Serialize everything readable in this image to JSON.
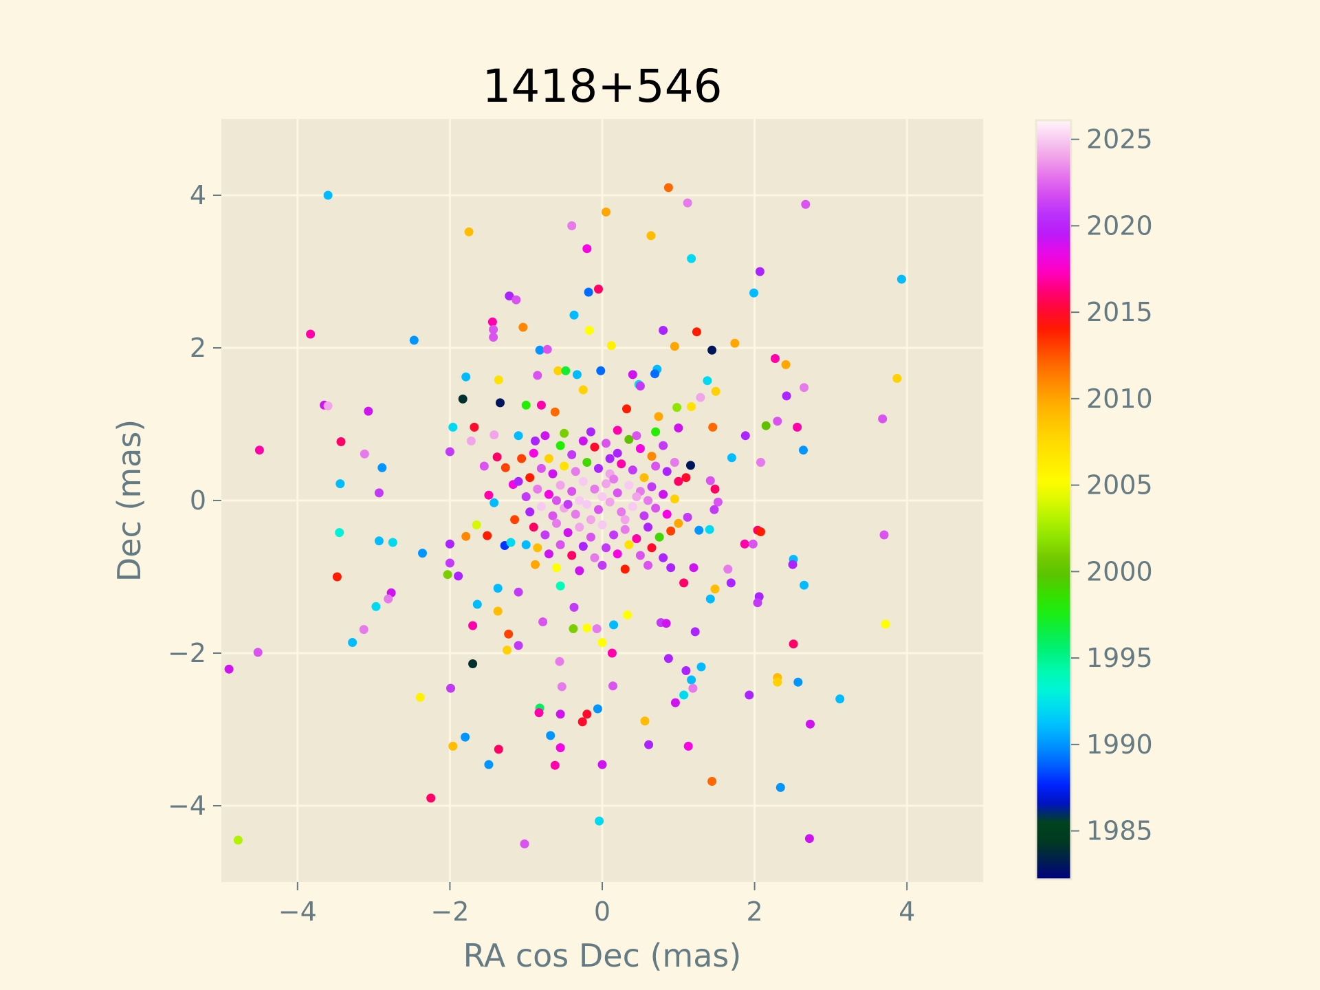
{
  "chart_data": {
    "type": "scatter",
    "title": "1418+546",
    "xlabel": "RA cos Dec (mas)",
    "ylabel": "Dec (mas)",
    "xlim": [
      -5,
      5
    ],
    "ylim": [
      -5,
      5
    ],
    "xticks": [
      -4,
      -2,
      0,
      2,
      4
    ],
    "yticks": [
      -4,
      -2,
      0,
      2,
      4
    ],
    "grid": true,
    "colorbar": {
      "label": "",
      "range": [
        1982.2,
        2026.1
      ],
      "ticks": [
        1985,
        1990,
        1995,
        2000,
        2005,
        2010,
        2015,
        2020,
        2025
      ],
      "colormap": "gist_ncar"
    },
    "colors": {
      "figure_background": "#fdf6e3",
      "plot_background": "#eee8d5",
      "grid": "#fdf6e3",
      "axis_text": "#657b83",
      "title_text": "#000000"
    },
    "points": [
      [
        -3.6,
        4.0,
        1991
      ],
      [
        0.87,
        4.1,
        2012
      ],
      [
        0.05,
        3.78,
        2010
      ],
      [
        1.12,
        3.9,
        2023
      ],
      [
        2.67,
        3.88,
        2022
      ],
      [
        -1.75,
        3.52,
        2009
      ],
      [
        -0.4,
        3.6,
        2023
      ],
      [
        0.64,
        3.47,
        2009
      ],
      [
        -0.2,
        3.3,
        2018
      ],
      [
        1.17,
        3.17,
        1992
      ],
      [
        2.07,
        3.0,
        2020
      ],
      [
        3.93,
        2.9,
        1991
      ],
      [
        -1.22,
        2.68,
        2020
      ],
      [
        -1.13,
        2.63,
        2022
      ],
      [
        -0.18,
        2.73,
        1989
      ],
      [
        -0.05,
        2.77,
        2016
      ],
      [
        1.99,
        2.72,
        1991
      ],
      [
        -3.83,
        2.18,
        2017
      ],
      [
        -2.47,
        2.1,
        1990
      ],
      [
        -1.44,
        2.34,
        2017
      ],
      [
        -1.43,
        2.24,
        2022
      ],
      [
        -1.43,
        2.14,
        2022
      ],
      [
        -1.04,
        2.27,
        2011
      ],
      [
        -0.37,
        2.43,
        1991
      ],
      [
        -0.17,
        2.23,
        2005
      ],
      [
        0.12,
        2.03,
        2006
      ],
      [
        0.8,
        2.23,
        2020
      ],
      [
        1.24,
        2.21,
        2014
      ],
      [
        0.95,
        2.02,
        2010
      ],
      [
        1.44,
        1.97,
        1983
      ],
      [
        1.74,
        2.06,
        2010
      ],
      [
        -0.82,
        1.97,
        1990
      ],
      [
        -0.72,
        1.98,
        2022
      ],
      [
        0.4,
        1.65,
        2019
      ],
      [
        0.72,
        1.72,
        1991
      ],
      [
        2.27,
        1.86,
        2017
      ],
      [
        2.41,
        1.78,
        2010
      ],
      [
        3.87,
        1.6,
        2008
      ],
      [
        -1.79,
        1.62,
        1991
      ],
      [
        -1.36,
        1.58,
        2007
      ],
      [
        -0.85,
        1.64,
        2022
      ],
      [
        -0.58,
        1.7,
        2008
      ],
      [
        -0.48,
        1.7,
        1997
      ],
      [
        -0.33,
        1.65,
        1991
      ],
      [
        -0.02,
        1.7,
        1989
      ],
      [
        0.48,
        1.52,
        1992
      ],
      [
        0.69,
        1.66,
        1989
      ],
      [
        1.38,
        1.57,
        1992
      ],
      [
        1.49,
        1.43,
        2008
      ],
      [
        0.32,
        1.2,
        2014
      ],
      [
        -3.65,
        1.25,
        2019
      ],
      [
        -3.6,
        1.24,
        2024
      ],
      [
        -3.07,
        1.17,
        2019
      ],
      [
        -1.83,
        1.33,
        1984
      ],
      [
        -1.34,
        1.28,
        1983
      ],
      [
        -1.0,
        1.25,
        1998
      ],
      [
        -0.8,
        1.25,
        2017
      ],
      [
        -0.62,
        1.16,
        2012
      ],
      [
        -0.25,
        1.45,
        2008
      ],
      [
        0.5,
        1.5,
        2021
      ],
      [
        0.74,
        1.1,
        2010
      ],
      [
        0.98,
        1.22,
        2002
      ],
      [
        1.17,
        1.23,
        2007
      ],
      [
        1.29,
        1.35,
        2024
      ],
      [
        2.42,
        1.37,
        2020
      ],
      [
        2.65,
        1.48,
        2023
      ],
      [
        3.68,
        1.07,
        2022
      ],
      [
        -1.96,
        0.96,
        1992
      ],
      [
        -1.68,
        0.96,
        2015
      ],
      [
        -1.42,
        0.86,
        2024
      ],
      [
        -1.1,
        0.85,
        1991
      ],
      [
        -0.88,
        0.78,
        2020
      ],
      [
        1.0,
        0.95,
        2019
      ],
      [
        1.45,
        0.96,
        2012
      ],
      [
        2.15,
        0.98,
        2000
      ],
      [
        2.3,
        1.04,
        2022
      ],
      [
        2.56,
        0.96,
        2017
      ],
      [
        -4.5,
        0.66,
        2017
      ],
      [
        -3.43,
        0.77,
        2016
      ],
      [
        -3.12,
        0.61,
        2023
      ],
      [
        -2.0,
        0.64,
        2021
      ],
      [
        -1.72,
        0.78,
        2024
      ],
      [
        -1.38,
        0.57,
        2016
      ],
      [
        -1.06,
        0.55,
        2013
      ],
      [
        1.88,
        0.85,
        2020
      ],
      [
        2.08,
        0.5,
        2023
      ],
      [
        2.64,
        0.66,
        1990
      ],
      [
        1.16,
        0.46,
        1983
      ],
      [
        -3.44,
        0.22,
        1991
      ],
      [
        -2.89,
        0.43,
        1990
      ],
      [
        -2.93,
        0.1,
        2021
      ],
      [
        -1.55,
        0.45,
        2022
      ],
      [
        -1.27,
        0.43,
        2013
      ],
      [
        -1.17,
        0.21,
        2018
      ],
      [
        1.7,
        0.56,
        1991
      ],
      [
        1.42,
        0.26,
        2022
      ],
      [
        1.48,
        0.15,
        2016
      ],
      [
        -1.42,
        -0.03,
        1991
      ],
      [
        -1.49,
        0.07,
        2017
      ],
      [
        1.52,
        -0.02,
        2022
      ],
      [
        1.47,
        -0.12,
        2021
      ],
      [
        -3.45,
        -0.42,
        1993
      ],
      [
        -2.93,
        -0.53,
        1991
      ],
      [
        -2.75,
        -0.55,
        1992
      ],
      [
        -2.36,
        -0.69,
        1990
      ],
      [
        -2.0,
        -0.57,
        2020
      ],
      [
        -1.79,
        -0.47,
        2011
      ],
      [
        -1.65,
        -0.32,
        2004
      ],
      [
        -1.51,
        -0.46,
        2014
      ],
      [
        -1.28,
        -0.59,
        1988
      ],
      [
        -1.2,
        -0.55,
        1992
      ],
      [
        -1.0,
        -0.58,
        1991
      ],
      [
        1.27,
        -0.39,
        1990
      ],
      [
        1.41,
        -0.38,
        1992
      ],
      [
        1.87,
        -0.57,
        2017
      ],
      [
        1.98,
        -0.57,
        2022
      ],
      [
        2.04,
        -0.39,
        2016
      ],
      [
        2.08,
        -0.41,
        2014
      ],
      [
        3.7,
        -0.45,
        2022
      ],
      [
        -2.0,
        -0.82,
        2021
      ],
      [
        -1.89,
        -0.99,
        2020
      ],
      [
        -2.03,
        -0.97,
        2001
      ],
      [
        -0.88,
        -0.84,
        2010
      ],
      [
        1.2,
        -0.88,
        2019
      ],
      [
        1.65,
        -0.9,
        2023
      ],
      [
        2.51,
        -0.77,
        1991
      ],
      [
        2.5,
        -0.84,
        2020
      ],
      [
        -3.48,
        -1.0,
        2014
      ],
      [
        -2.77,
        -1.21,
        2019
      ],
      [
        -2.81,
        -1.29,
        2023
      ],
      [
        -1.37,
        -1.15,
        1991
      ],
      [
        -1.1,
        -1.2,
        2021
      ],
      [
        -0.55,
        -1.12,
        1994
      ],
      [
        -0.37,
        -1.4,
        2021
      ],
      [
        1.07,
        -1.08,
        2016
      ],
      [
        1.48,
        -1.16,
        2009
      ],
      [
        1.42,
        -1.29,
        1991
      ],
      [
        1.69,
        -1.08,
        2020
      ],
      [
        2.06,
        -1.26,
        2020
      ],
      [
        2.04,
        -1.34,
        2021
      ],
      [
        2.65,
        -1.11,
        1991
      ],
      [
        -3.13,
        -1.69,
        2023
      ],
      [
        -2.97,
        -1.39,
        1992
      ],
      [
        -1.64,
        -1.36,
        1991
      ],
      [
        -1.7,
        -1.64,
        2017
      ],
      [
        -1.37,
        -1.45,
        2009
      ],
      [
        -1.23,
        -1.75,
        2013
      ],
      [
        -0.78,
        -1.59,
        2022
      ],
      [
        -0.38,
        -1.68,
        2001
      ],
      [
        -0.2,
        -1.67,
        2005
      ],
      [
        -0.07,
        -1.68,
        2023
      ],
      [
        0.15,
        -1.63,
        1991
      ],
      [
        0.33,
        -1.5,
        2005
      ],
      [
        0.77,
        -1.6,
        2021
      ],
      [
        0.84,
        -1.61,
        2019
      ],
      [
        1.22,
        -1.72,
        2020
      ],
      [
        2.51,
        -1.88,
        2016
      ],
      [
        3.72,
        -1.62,
        2005
      ],
      [
        -4.9,
        -2.21,
        2019
      ],
      [
        -4.52,
        -1.99,
        2022
      ],
      [
        -3.28,
        -1.86,
        1991
      ],
      [
        -1.7,
        -2.14,
        1984
      ],
      [
        -1.25,
        -1.96,
        2008
      ],
      [
        -1.1,
        -1.9,
        2021
      ],
      [
        -0.56,
        -2.11,
        2023
      ],
      [
        0.0,
        -1.86,
        2005
      ],
      [
        0.13,
        -2.0,
        2017
      ],
      [
        0.87,
        -2.07,
        2020
      ],
      [
        1.1,
        -2.23,
        2020
      ],
      [
        1.17,
        -2.35,
        1991
      ],
      [
        1.3,
        -2.18,
        1991
      ],
      [
        2.3,
        -2.32,
        2009
      ],
      [
        2.3,
        -2.38,
        2008
      ],
      [
        2.57,
        -2.38,
        1990
      ],
      [
        -2.39,
        -2.58,
        2006
      ],
      [
        -1.99,
        -2.46,
        2021
      ],
      [
        -0.82,
        -2.72,
        1996
      ],
      [
        -0.53,
        -2.44,
        2023
      ],
      [
        0.14,
        -2.43,
        2022
      ],
      [
        1.07,
        -2.55,
        1992
      ],
      [
        1.19,
        -2.46,
        2023
      ],
      [
        1.93,
        -2.55,
        2020
      ],
      [
        3.12,
        -2.6,
        1991
      ],
      [
        0.96,
        -2.65,
        2019
      ],
      [
        -0.83,
        -2.78,
        2017
      ],
      [
        -0.55,
        -2.8,
        2019
      ],
      [
        -0.26,
        -2.9,
        2015
      ],
      [
        -0.2,
        -2.8,
        2015
      ],
      [
        -0.06,
        -2.73,
        1990
      ],
      [
        0.56,
        -2.89,
        2009
      ],
      [
        2.73,
        -2.93,
        2019
      ],
      [
        -1.96,
        -3.22,
        2009
      ],
      [
        -1.8,
        -3.1,
        1990
      ],
      [
        -1.36,
        -3.26,
        2016
      ],
      [
        -0.68,
        -3.08,
        1990
      ],
      [
        -0.55,
        -3.24,
        2018
      ],
      [
        0.61,
        -3.2,
        2020
      ],
      [
        1.13,
        -3.22,
        2018
      ],
      [
        -1.49,
        -3.46,
        1990
      ],
      [
        -0.62,
        -3.47,
        2017
      ],
      [
        0.0,
        -3.46,
        2019
      ],
      [
        1.44,
        -3.68,
        2012
      ],
      [
        2.34,
        -3.76,
        1990
      ],
      [
        -2.25,
        -3.9,
        2016
      ],
      [
        -0.04,
        -4.2,
        1992
      ],
      [
        -4.78,
        -4.45,
        2003
      ],
      [
        -1.02,
        -4.5,
        2022
      ],
      [
        2.72,
        -4.43,
        2019
      ],
      [
        -0.9,
        0.62,
        2018
      ],
      [
        -0.7,
        0.55,
        2008
      ],
      [
        -0.55,
        0.72,
        1998
      ],
      [
        -0.4,
        0.6,
        2021
      ],
      [
        -0.25,
        0.78,
        2019
      ],
      [
        -0.1,
        0.7,
        2015
      ],
      [
        0.05,
        0.75,
        2022
      ],
      [
        0.2,
        0.62,
        2020
      ],
      [
        0.35,
        0.8,
        2000
      ],
      [
        0.5,
        0.68,
        2018
      ],
      [
        0.65,
        0.58,
        2011
      ],
      [
        0.8,
        0.72,
        2021
      ],
      [
        0.95,
        0.5,
        2023
      ],
      [
        -0.95,
        0.3,
        2014
      ],
      [
        -0.8,
        0.42,
        2022
      ],
      [
        -0.65,
        0.35,
        2019
      ],
      [
        -0.5,
        0.45,
        2007
      ],
      [
        -0.35,
        0.38,
        2023
      ],
      [
        -0.2,
        0.5,
        1999
      ],
      [
        -0.05,
        0.42,
        2020
      ],
      [
        0.1,
        0.35,
        2024
      ],
      [
        0.25,
        0.48,
        2017
      ],
      [
        0.4,
        0.4,
        2021
      ],
      [
        0.55,
        0.3,
        2009
      ],
      [
        0.7,
        0.45,
        2022
      ],
      [
        0.85,
        0.38,
        2020
      ],
      [
        1.0,
        0.25,
        2016
      ],
      [
        -1.0,
        0.05,
        2021
      ],
      [
        -0.85,
        0.15,
        2023
      ],
      [
        -0.7,
        0.08,
        2018
      ],
      [
        -0.55,
        0.2,
        2024
      ],
      [
        -0.4,
        0.12,
        2022
      ],
      [
        -0.25,
        0.25,
        2025
      ],
      [
        -0.1,
        0.15,
        2023
      ],
      [
        0.05,
        0.22,
        2024
      ],
      [
        0.2,
        0.1,
        2022
      ],
      [
        0.35,
        0.2,
        2025
      ],
      [
        0.5,
        0.12,
        2023
      ],
      [
        0.65,
        0.18,
        2021
      ],
      [
        0.8,
        0.08,
        2019
      ],
      [
        0.95,
        0.02,
        2008
      ],
      [
        -0.95,
        -0.15,
        2020
      ],
      [
        -0.8,
        -0.08,
        2025
      ],
      [
        -0.65,
        -0.2,
        2022
      ],
      [
        -0.5,
        -0.1,
        2024
      ],
      [
        -0.35,
        -0.18,
        2023
      ],
      [
        -0.2,
        -0.05,
        2025
      ],
      [
        -0.05,
        -0.12,
        2022
      ],
      [
        0.1,
        -0.02,
        2024
      ],
      [
        0.25,
        -0.15,
        2023
      ],
      [
        0.4,
        -0.08,
        2025
      ],
      [
        0.55,
        -0.2,
        2021
      ],
      [
        0.7,
        -0.1,
        2022
      ],
      [
        0.85,
        -0.18,
        2018
      ],
      [
        1.0,
        -0.3,
        2010
      ],
      [
        -0.9,
        -0.35,
        2016
      ],
      [
        -0.75,
        -0.45,
        2021
      ],
      [
        -0.6,
        -0.3,
        2023
      ],
      [
        -0.45,
        -0.42,
        2019
      ],
      [
        -0.3,
        -0.35,
        2024
      ],
      [
        -0.15,
        -0.48,
        2022
      ],
      [
        0.0,
        -0.32,
        2025
      ],
      [
        0.15,
        -0.45,
        2021
      ],
      [
        0.3,
        -0.38,
        2023
      ],
      [
        0.45,
        -0.5,
        2017
      ],
      [
        0.6,
        -0.35,
        2020
      ],
      [
        0.75,
        -0.48,
        1999
      ],
      [
        0.9,
        -0.4,
        2013
      ],
      [
        -0.85,
        -0.62,
        2009
      ],
      [
        -0.7,
        -0.7,
        2019
      ],
      [
        -0.55,
        -0.58,
        2022
      ],
      [
        -0.4,
        -0.72,
        2016
      ],
      [
        -0.25,
        -0.6,
        2020
      ],
      [
        -0.1,
        -0.75,
        2023
      ],
      [
        0.05,
        -0.62,
        2021
      ],
      [
        0.2,
        -0.7,
        2018
      ],
      [
        0.35,
        -0.58,
        2007
      ],
      [
        0.5,
        -0.72,
        2022
      ],
      [
        0.65,
        -0.62,
        2015
      ],
      [
        0.8,
        -0.75,
        2020
      ],
      [
        -0.3,
        0.0,
        2025
      ],
      [
        -0.15,
        -0.25,
        2024
      ],
      [
        0.0,
        0.05,
        2025
      ],
      [
        0.15,
        0.28,
        2023
      ],
      [
        0.3,
        -0.25,
        2024
      ],
      [
        -0.6,
        0.0,
        2022
      ],
      [
        0.6,
        0.0,
        2023
      ],
      [
        -0.45,
        -0.05,
        2021
      ],
      [
        0.45,
        0.05,
        2024
      ],
      [
        0.1,
        0.55,
        2020
      ],
      [
        -0.75,
        0.85,
        2019
      ],
      [
        -0.5,
        0.88,
        2001
      ],
      [
        -0.15,
        0.9,
        2020
      ],
      [
        0.2,
        0.92,
        2017
      ],
      [
        0.45,
        0.85,
        2022
      ],
      [
        0.7,
        0.9,
        1998
      ],
      [
        -0.6,
        -0.88,
        2005
      ],
      [
        -0.3,
        -0.92,
        2019
      ],
      [
        0.0,
        -0.85,
        2021
      ],
      [
        0.3,
        -0.9,
        2014
      ],
      [
        0.6,
        -0.85,
        2022
      ],
      [
        0.9,
        -0.88,
        2020
      ],
      [
        -1.1,
        0.25,
        2020
      ],
      [
        1.1,
        0.3,
        2015
      ],
      [
        -1.15,
        -0.25,
        2013
      ],
      [
        1.12,
        -0.22,
        2021
      ]
    ]
  }
}
